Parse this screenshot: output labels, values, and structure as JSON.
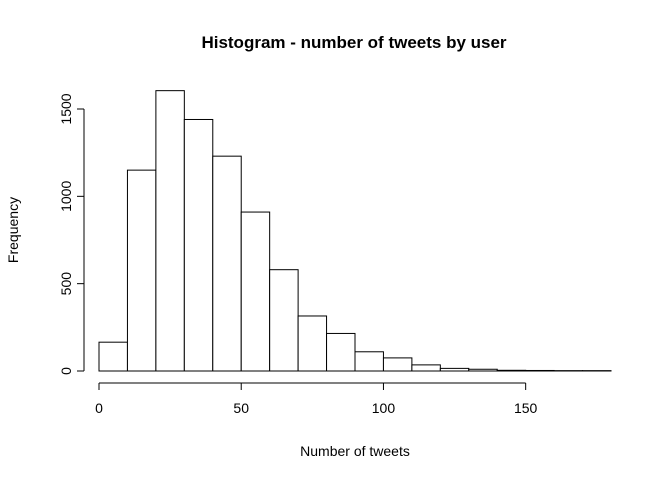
{
  "chart_data": {
    "type": "bar",
    "title": "Histogram - number of tweets by user",
    "xlabel": "Number of tweets",
    "ylabel": "Frequency",
    "bin_width": 10,
    "bins": [
      {
        "x0": 0,
        "x1": 10,
        "count": 165
      },
      {
        "x0": 10,
        "x1": 20,
        "count": 1150
      },
      {
        "x0": 20,
        "x1": 30,
        "count": 1605
      },
      {
        "x0": 30,
        "x1": 40,
        "count": 1440
      },
      {
        "x0": 40,
        "x1": 50,
        "count": 1230
      },
      {
        "x0": 50,
        "x1": 60,
        "count": 910
      },
      {
        "x0": 60,
        "x1": 70,
        "count": 580
      },
      {
        "x0": 70,
        "x1": 80,
        "count": 315
      },
      {
        "x0": 80,
        "x1": 90,
        "count": 215
      },
      {
        "x0": 90,
        "x1": 100,
        "count": 110
      },
      {
        "x0": 100,
        "x1": 110,
        "count": 75
      },
      {
        "x0": 110,
        "x1": 120,
        "count": 35
      },
      {
        "x0": 120,
        "x1": 130,
        "count": 15
      },
      {
        "x0": 130,
        "x1": 140,
        "count": 10
      },
      {
        "x0": 140,
        "x1": 150,
        "count": 4
      },
      {
        "x0": 150,
        "x1": 160,
        "count": 3
      },
      {
        "x0": 160,
        "x1": 170,
        "count": 2
      },
      {
        "x0": 170,
        "x1": 180,
        "count": 2
      }
    ],
    "xlim": [
      0,
      180
    ],
    "ylim": [
      0,
      1650
    ],
    "x_ticks": [
      0,
      50,
      100,
      150
    ],
    "y_ticks": [
      0,
      500,
      1000,
      1500
    ],
    "grid": false,
    "legend": "none"
  }
}
